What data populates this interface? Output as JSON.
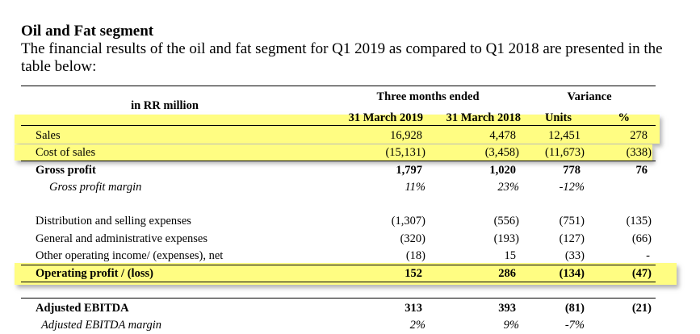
{
  "section_title": "Oil and Fat segment",
  "intro_text": "The financial results of the oil and fat segment for Q1 2019 as compared to Q1 2018 are presented in the table below:",
  "table": {
    "unit_label": "in RR million",
    "group_header_period": "Three months ended",
    "group_header_variance": "Variance",
    "col_q1_2019": "31 March 2019",
    "col_q1_2018": "31 March 2018",
    "col_units": "Units",
    "col_pct": "%",
    "rows": [
      {
        "label": "Sales",
        "q1_2019": "16,928",
        "q1_2018": "4,478",
        "units": "12,451",
        "pct": "278"
      },
      {
        "label": "Cost of sales",
        "q1_2019": "(15,131)",
        "q1_2018": "(3,458)",
        "units": "(11,673)",
        "pct": "(338)"
      },
      {
        "label": "Gross profit",
        "q1_2019": "1,797",
        "q1_2018": "1,020",
        "units": "778",
        "pct": "76"
      },
      {
        "label": "Gross profit margin",
        "q1_2019": "11%",
        "q1_2018": "23%",
        "units": "-12%",
        "pct": ""
      },
      {
        "label": "Distribution and selling expenses",
        "q1_2019": "(1,307)",
        "q1_2018": "(556)",
        "units": "(751)",
        "pct": "(135)"
      },
      {
        "label": "General and administrative expenses",
        "q1_2019": "(320)",
        "q1_2018": "(193)",
        "units": "(127)",
        "pct": "(66)"
      },
      {
        "label": "Other operating income/ (expenses), net",
        "q1_2019": "(18)",
        "q1_2018": "15",
        "units": "(33)",
        "pct": "-"
      },
      {
        "label": "Operating profit / (loss)",
        "q1_2019": "152",
        "q1_2018": "286",
        "units": "(134)",
        "pct": "(47)"
      },
      {
        "label": "Adjusted EBITDA",
        "q1_2019": "313",
        "q1_2018": "393",
        "units": "(81)",
        "pct": "(21)"
      },
      {
        "label": "Adjusted EBITDA margin",
        "q1_2019": "2%",
        "q1_2018": "9%",
        "units": "-7%",
        "pct": ""
      }
    ]
  },
  "highlight_color": "#fffd82"
}
